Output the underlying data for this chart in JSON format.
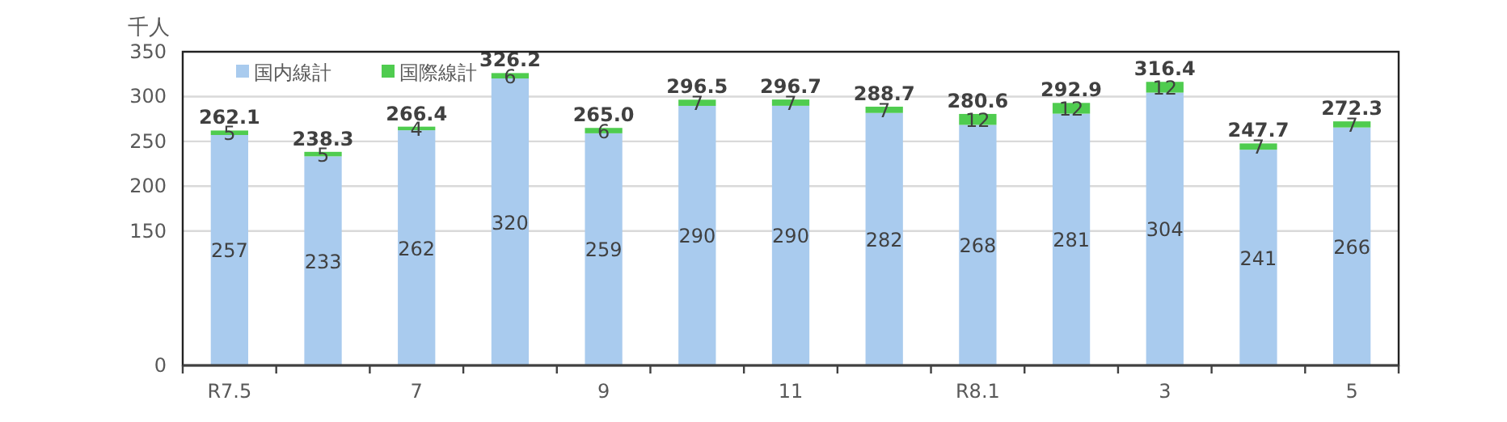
{
  "chart_data": {
    "type": "bar",
    "stacked": true,
    "ylabel": "千人",
    "categories": [
      "R7.5",
      null,
      "7",
      null,
      "9",
      null,
      "11",
      null,
      "R8.1",
      null,
      "3",
      null,
      "5"
    ],
    "series": [
      {
        "name": "国内線計",
        "color": "#a9cbee",
        "values": [
          257.1,
          233.3,
          262.4,
          320.2,
          259.0,
          289.6,
          289.7,
          281.7,
          268.4,
          280.9,
          304.4,
          240.7,
          265.5
        ],
        "value_labels": [
          "257",
          "233",
          "262",
          "320",
          "259",
          "290",
          "290",
          "282",
          "268",
          "281",
          "304",
          "241",
          "266"
        ]
      },
      {
        "name": "国際線計",
        "color": "#4fcc4f",
        "values": [
          5.0,
          5.0,
          4.0,
          6.0,
          6.0,
          6.9,
          7.0,
          7.0,
          12.2,
          12.0,
          12.0,
          7.0,
          6.8
        ],
        "value_labels": [
          "5",
          "5",
          "4",
          "6",
          "6",
          "7",
          "7",
          "7",
          "12",
          "12",
          "12",
          "7",
          "7"
        ]
      }
    ],
    "totals": [
      "262.1",
      "238.3",
      "266.4",
      "326.2",
      "265.0",
      "296.5",
      "296.7",
      "288.7",
      "280.6",
      "292.9",
      "316.4",
      "247.7",
      "272.3"
    ],
    "ylim": [
      0,
      350
    ],
    "yticks": [
      0,
      150,
      200,
      250,
      300,
      350
    ],
    "grid": "y",
    "legend": "top left"
  }
}
